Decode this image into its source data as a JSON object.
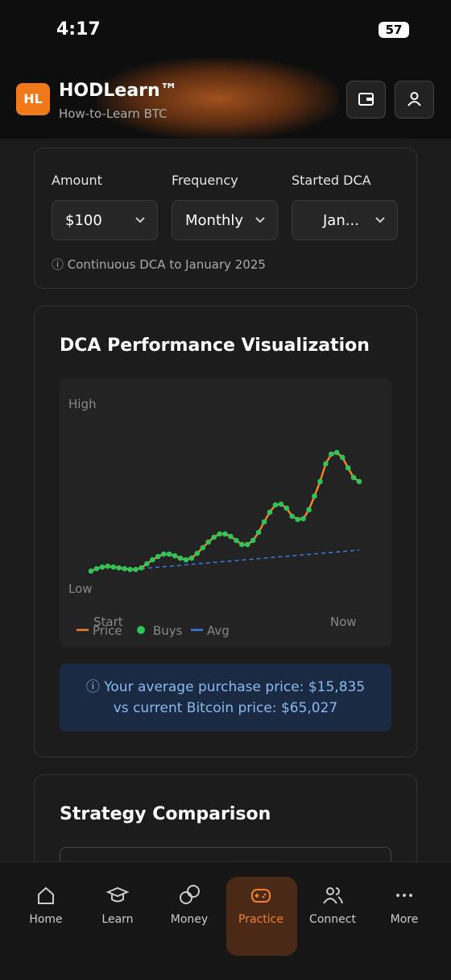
{
  "status": {
    "time": "4:17",
    "battery": "57"
  },
  "header": {
    "logo": "HL",
    "title": "HODLearn™",
    "subtitle": "How-to-Learn BTC"
  },
  "settings": {
    "amount_label": "Amount",
    "amount": "$100",
    "frequency_label": "Frequency",
    "frequency": "Monthly",
    "start_label": "Started DCA",
    "start": "Jan...",
    "note": "Continuous DCA to January 2025"
  },
  "chart": {
    "type": "line",
    "title": "DCA Performance Visualization",
    "high_label": "High",
    "low_label": "Low",
    "start_label": "Start",
    "end_label": "Now",
    "legend": [
      "Price",
      "Buys",
      "Avg"
    ],
    "ylim": [
      0,
      180
    ],
    "series": [
      {
        "name": "Price",
        "color": "#f0802a",
        "dot_color": "#2ec45a",
        "values": [
          12,
          15,
          17,
          18,
          17,
          16,
          15,
          14,
          14,
          16,
          21,
          26,
          30,
          33,
          33,
          31,
          28,
          26,
          28,
          34,
          41,
          48,
          54,
          58,
          58,
          55,
          50,
          45,
          45,
          50,
          60,
          73,
          85,
          94,
          95,
          90,
          80,
          76,
          77,
          88,
          105,
          123,
          145,
          157,
          159,
          153,
          140,
          128,
          123
        ]
      }
    ],
    "avg_color": "#3b7ae0"
  },
  "info": {
    "line1": "Your average purchase price: $15,835",
    "line2": "vs current Bitcoin price: $65,027"
  },
  "comparison": {
    "title": "Strategy Comparison"
  },
  "nav": [
    "Home",
    "Learn",
    "Money",
    "Practice",
    "Connect",
    "More"
  ]
}
